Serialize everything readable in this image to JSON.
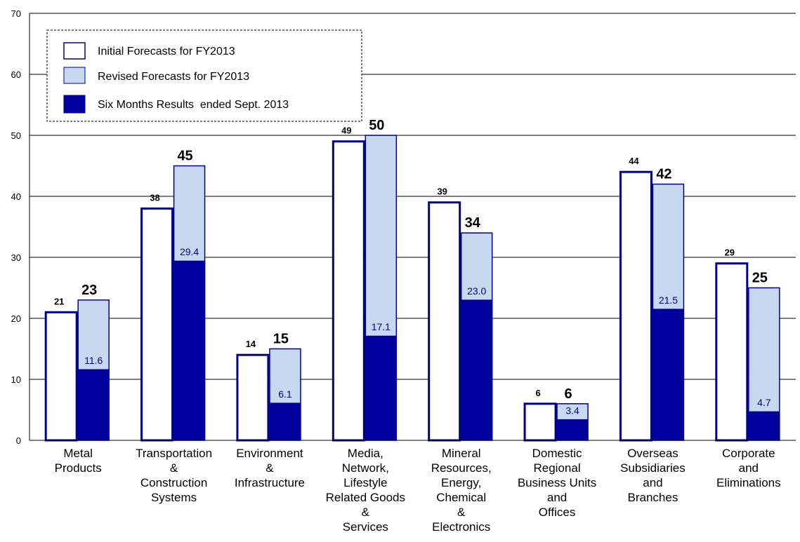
{
  "chart_data": {
    "type": "bar",
    "categories": [
      [
        "Metal",
        "Products"
      ],
      [
        "Transportation",
        "&",
        "Construction",
        "Systems"
      ],
      [
        "Environment",
        "&",
        "Infrastructure"
      ],
      [
        "Media,",
        "Network,",
        "Lifestyle",
        "Related Goods",
        "&",
        "Services"
      ],
      [
        "Mineral",
        "Resources,",
        "Energy,",
        "Chemical",
        "&",
        "Electronics"
      ],
      [
        "Domestic",
        "Regional",
        "Business Units",
        "and",
        "Offices"
      ],
      [
        "Overseas",
        "Subsidiaries",
        "and",
        "Branches"
      ],
      [
        "Corporate",
        "and",
        "Eliminations"
      ]
    ],
    "series": [
      {
        "name": "Initial Forecasts for FY2013",
        "values": [
          21,
          38,
          14,
          49,
          39,
          6,
          44,
          29
        ],
        "labels": [
          "21",
          "38",
          "14",
          "49",
          "39",
          "6",
          "44",
          "29"
        ]
      },
      {
        "name": "Revised Forecasts for FY2013",
        "values": [
          23,
          45,
          15,
          50,
          34,
          6,
          42,
          25
        ],
        "labels": [
          "23",
          "45",
          "15",
          "50",
          "34",
          "6",
          "42",
          "25"
        ]
      },
      {
        "name": "Six Months Results  ended Sept. 2013",
        "values": [
          11.6,
          29.4,
          6.1,
          17.1,
          23.0,
          3.4,
          21.5,
          4.7
        ],
        "labels": [
          "11.6",
          "29.4",
          "6.1",
          "17.1",
          "23.0",
          "3.4",
          "21.5",
          "4.7"
        ]
      }
    ],
    "yticks": [
      "0",
      "10",
      "20",
      "30",
      "40",
      "50",
      "60",
      "70"
    ],
    "ylim": [
      0,
      70
    ],
    "grid": true,
    "legend_position": "top-left",
    "colors": {
      "initial_fill": "#ffffff",
      "initial_stroke": "#00008b",
      "revised_fill": "#c6d9f1",
      "revised_stroke": "#00008b",
      "six_fill": "#00009c",
      "six_label": "#00008b",
      "grid": "#000000"
    }
  }
}
